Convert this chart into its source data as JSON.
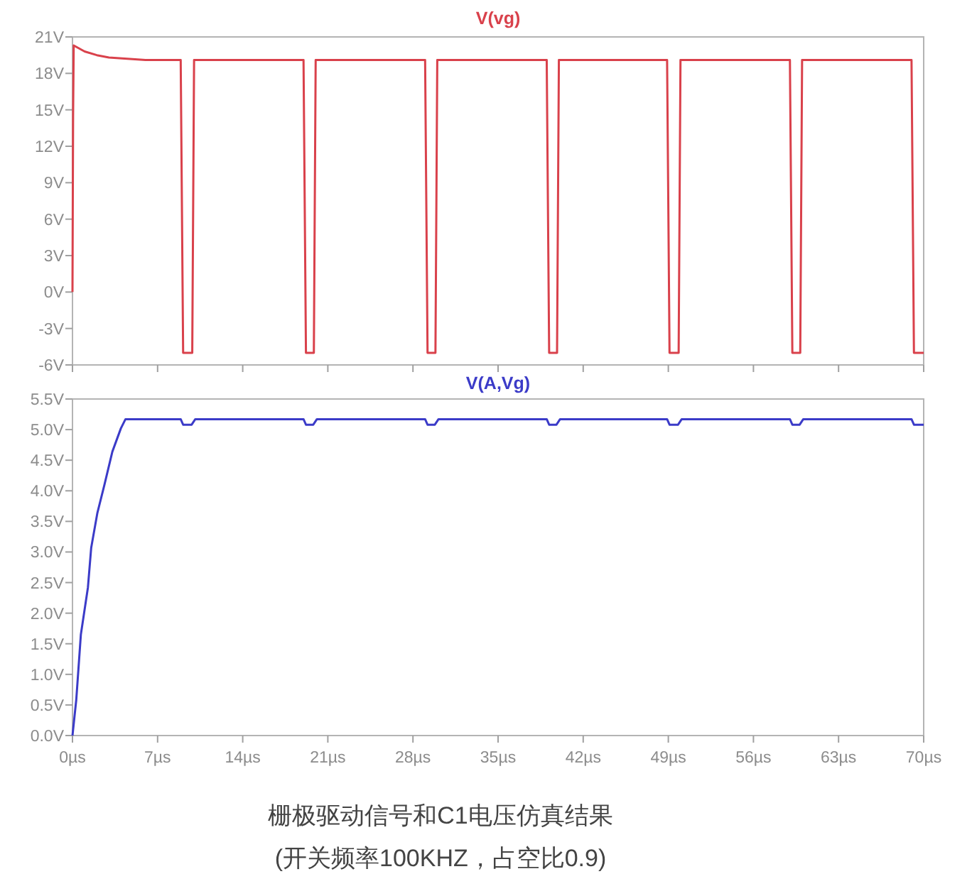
{
  "chart_data": [
    {
      "type": "line",
      "title": "V(vg)",
      "tick_labels": "y",
      "grid": false,
      "marker": "none",
      "line_style": "solid",
      "xlim": [
        0,
        70
      ],
      "ylim": [
        -6,
        21
      ],
      "xticks": [
        {
          "value": 0,
          "label": null
        },
        {
          "value": 7,
          "label": null
        },
        {
          "value": 14,
          "label": null
        },
        {
          "value": 21,
          "label": null
        },
        {
          "value": 28,
          "label": null
        },
        {
          "value": 35,
          "label": null
        },
        {
          "value": 42,
          "label": null
        },
        {
          "value": 49,
          "label": null
        },
        {
          "value": 56,
          "label": null
        },
        {
          "value": 63,
          "label": null
        },
        {
          "value": 70,
          "label": null
        }
      ],
      "yticks": [
        {
          "value": -6,
          "label": "-6V"
        },
        {
          "value": -3,
          "label": "-3V"
        },
        {
          "value": 0,
          "label": "0V"
        },
        {
          "value": 3,
          "label": "3V"
        },
        {
          "value": 6,
          "label": "6V"
        },
        {
          "value": 9,
          "label": "9V"
        },
        {
          "value": 12,
          "label": "12V"
        },
        {
          "value": 15,
          "label": "15V"
        },
        {
          "value": 18,
          "label": "18V"
        },
        {
          "value": 21,
          "label": "21V"
        }
      ],
      "series": [
        {
          "color": "#d9414b",
          "x": [
            0,
            0.05,
            0.1,
            1,
            2,
            3,
            4.5,
            6,
            8.9,
            9.1,
            9.85,
            10.0,
            19.0,
            19.2,
            19.85,
            20.0,
            29.0,
            29.2,
            29.85,
            30.0,
            39.0,
            39.2,
            39.85,
            40.0,
            48.9,
            49.1,
            49.85,
            50.0,
            59.0,
            59.2,
            59.85,
            60.0,
            69.0,
            69.2,
            70
          ],
          "values": [
            0,
            14.5,
            20.3,
            19.8,
            19.5,
            19.3,
            19.2,
            19.1,
            19.1,
            -5,
            -5,
            19.1,
            19.1,
            -5,
            -5,
            19.1,
            19.1,
            -5,
            -5,
            19.1,
            19.1,
            -5,
            -5,
            19.1,
            19.1,
            -5,
            -5,
            19.1,
            19.1,
            -5,
            -5,
            19.1,
            19.1,
            -5,
            -5
          ]
        }
      ]
    },
    {
      "type": "line",
      "title": "V(A,Vg)",
      "grid": false,
      "marker": "none",
      "line_style": "solid",
      "xlim": [
        0,
        70
      ],
      "ylim": [
        0,
        5.5
      ],
      "xticks": [
        {
          "value": 0,
          "label": "0µs"
        },
        {
          "value": 7,
          "label": "7µs"
        },
        {
          "value": 14,
          "label": "14µs"
        },
        {
          "value": 21,
          "label": "21µs"
        },
        {
          "value": 28,
          "label": "28µs"
        },
        {
          "value": 35,
          "label": "35µs"
        },
        {
          "value": 42,
          "label": "42µs"
        },
        {
          "value": 49,
          "label": "49µs"
        },
        {
          "value": 56,
          "label": "56µs"
        },
        {
          "value": 63,
          "label": "63µs"
        },
        {
          "value": 70,
          "label": "70µs"
        }
      ],
      "yticks": [
        {
          "value": 0,
          "label": "0.0V"
        },
        {
          "value": 0.5,
          "label": "0.5V"
        },
        {
          "value": 1,
          "label": "1.0V"
        },
        {
          "value": 1.5,
          "label": "1.5V"
        },
        {
          "value": 2,
          "label": "2.0V"
        },
        {
          "value": 2.5,
          "label": "2.5V"
        },
        {
          "value": 3,
          "label": "3.0V"
        },
        {
          "value": 3.5,
          "label": "3.5V"
        },
        {
          "value": 4,
          "label": "4.0V"
        },
        {
          "value": 4.5,
          "label": "4.5V"
        },
        {
          "value": 5,
          "label": "5.0V"
        },
        {
          "value": 5.5,
          "label": "5.5V"
        }
      ],
      "series": [
        {
          "color": "#3b3bc8",
          "x": [
            0,
            0.31,
            0.69,
            1.27,
            1.54,
            2.05,
            2.63,
            3.28,
            3.98,
            4.36,
            8.9,
            9.1,
            9.8,
            10.1,
            19.0,
            19.2,
            19.8,
            20.1,
            29.0,
            29.2,
            29.8,
            30.1,
            39.0,
            39.2,
            39.8,
            40.1,
            48.9,
            49.1,
            49.8,
            50.1,
            59.0,
            59.2,
            59.8,
            60.1,
            69.0,
            69.2,
            70
          ],
          "values": [
            0,
            0.58,
            1.65,
            2.42,
            3.07,
            3.64,
            4.1,
            4.64,
            5.02,
            5.17,
            5.17,
            5.08,
            5.08,
            5.17,
            5.17,
            5.08,
            5.08,
            5.17,
            5.17,
            5.08,
            5.08,
            5.17,
            5.17,
            5.08,
            5.08,
            5.17,
            5.17,
            5.08,
            5.08,
            5.17,
            5.17,
            5.08,
            5.08,
            5.17,
            5.17,
            5.08,
            5.08
          ]
        }
      ],
      "annotations": [
        "栅极驱动信号和C1电压仿真结果",
        "(开关频率100KHZ，占空比0.9)"
      ]
    }
  ]
}
